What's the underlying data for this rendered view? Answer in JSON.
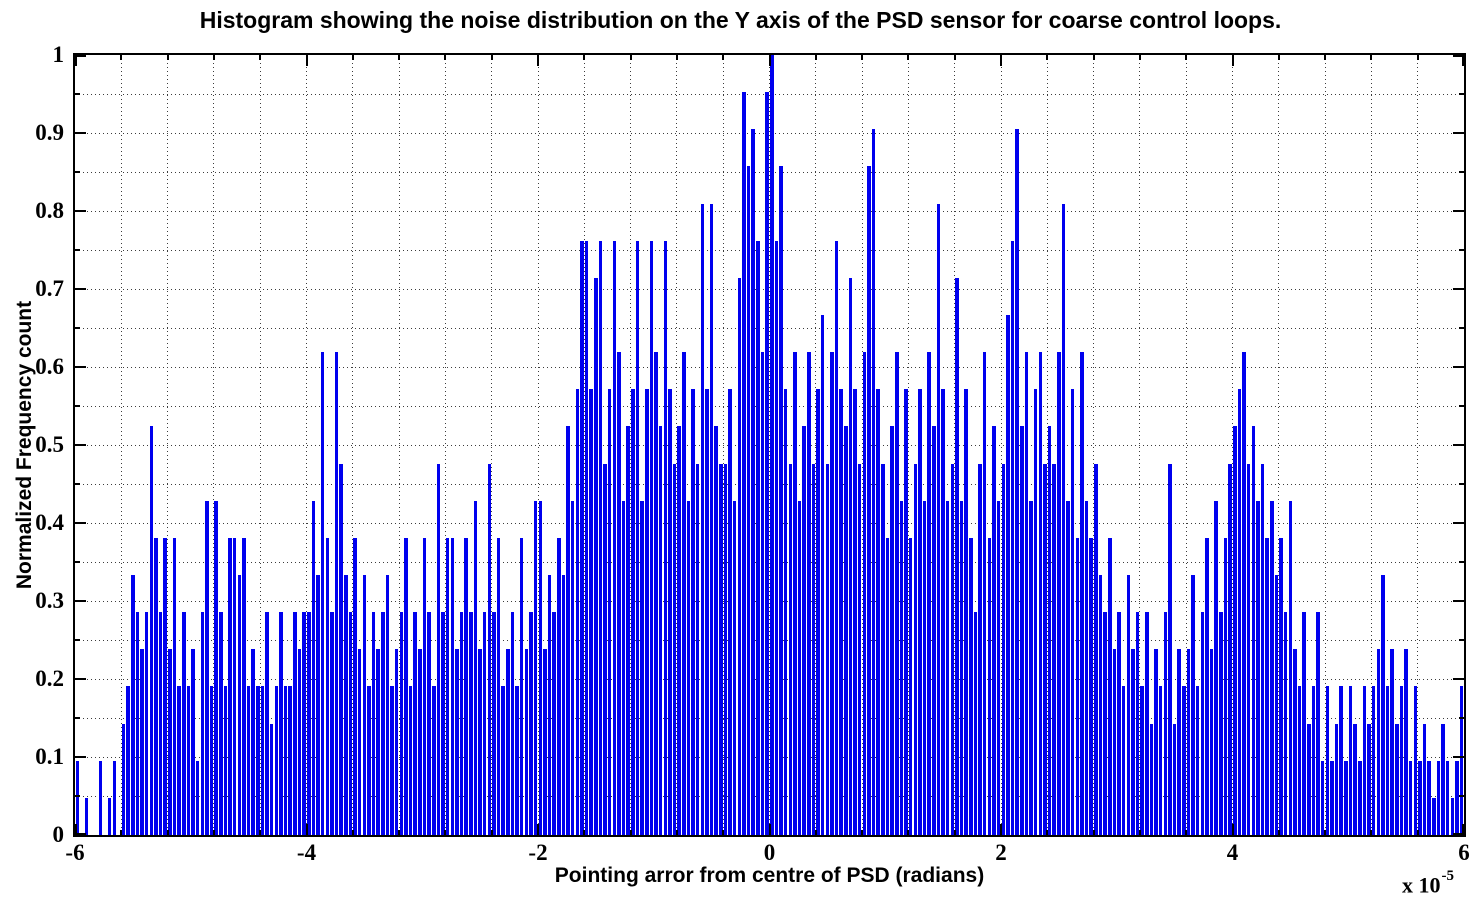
{
  "chart_data": {
    "type": "bar",
    "title": "Histogram showing the noise distribution on the Y axis of the PSD sensor for coarse control loops.",
    "xlabel": "Pointing arror from centre of PSD (radians)",
    "ylabel": "Normalized Frequency count",
    "exponent_prefix": "x 10",
    "exponent_power": "-5",
    "bar_color": "#0000ee",
    "grid": {
      "style": "dotted",
      "x_spacing": 0.4,
      "y_spacing": 0.05
    },
    "legend": "none",
    "x_axis": {
      "min": -6,
      "max": 6,
      "major_ticks": [
        -6,
        -4,
        -2,
        0,
        2,
        4,
        6
      ],
      "tick_labels": [
        "-6",
        "-4",
        "-2",
        "0",
        "2",
        "4",
        "6"
      ],
      "minor_step": 0.4
    },
    "y_axis": {
      "min": 0,
      "max": 1,
      "major_ticks": [
        0,
        0.1,
        0.2,
        0.3,
        0.4,
        0.5,
        0.6,
        0.7,
        0.8,
        0.9,
        1
      ],
      "tick_labels": [
        "0",
        "0.1",
        "0.2",
        "0.3",
        "0.4",
        "0.5",
        "0.6",
        "0.7",
        "0.8",
        "0.9",
        "1"
      ],
      "minor_step": 0.05
    },
    "bins": {
      "start": -6,
      "end": 6,
      "count": 300
    },
    "max_count": 21,
    "counts": [
      2,
      0,
      1,
      0,
      0,
      2,
      0,
      1,
      2,
      0,
      3,
      4,
      7,
      6,
      5,
      6,
      11,
      8,
      6,
      8,
      5,
      8,
      4,
      6,
      4,
      5,
      2,
      6,
      9,
      4,
      9,
      6,
      4,
      8,
      8,
      7,
      8,
      4,
      5,
      4,
      4,
      6,
      3,
      4,
      6,
      4,
      4,
      6,
      5,
      6,
      6,
      9,
      7,
      13,
      8,
      6,
      13,
      10,
      7,
      6,
      8,
      5,
      7,
      4,
      6,
      5,
      6,
      7,
      4,
      5,
      6,
      8,
      4,
      6,
      5,
      8,
      6,
      4,
      10,
      6,
      8,
      8,
      5,
      6,
      8,
      6,
      9,
      5,
      6,
      10,
      6,
      8,
      4,
      5,
      6,
      4,
      8,
      5,
      6,
      9,
      9,
      5,
      7,
      6,
      8,
      7,
      11,
      9,
      12,
      16,
      16,
      12,
      15,
      16,
      10,
      12,
      16,
      13,
      9,
      11,
      12,
      16,
      9,
      12,
      16,
      13,
      11,
      16,
      12,
      10,
      11,
      13,
      9,
      12,
      10,
      17,
      12,
      17,
      11,
      10,
      10,
      12,
      9,
      15,
      20,
      18,
      19,
      16,
      13,
      20,
      21,
      16,
      18,
      12,
      10,
      13,
      9,
      11,
      13,
      10,
      12,
      14,
      10,
      13,
      16,
      12,
      11,
      15,
      12,
      10,
      13,
      18,
      19,
      12,
      10,
      8,
      11,
      13,
      9,
      12,
      8,
      10,
      12,
      9,
      13,
      11,
      17,
      12,
      9,
      10,
      15,
      9,
      12,
      8,
      6,
      10,
      13,
      8,
      11,
      9,
      10,
      14,
      16,
      19,
      11,
      13,
      9,
      12,
      13,
      10,
      11,
      10,
      13,
      17,
      9,
      12,
      8,
      13,
      9,
      8,
      10,
      7,
      6,
      8,
      5,
      6,
      4,
      7,
      5,
      6,
      4,
      6,
      3,
      5,
      4,
      6,
      10,
      3,
      5,
      4,
      5,
      7,
      4,
      6,
      8,
      5,
      9,
      6,
      8,
      10,
      11,
      12,
      13,
      10,
      11,
      9,
      10,
      8,
      9,
      7,
      8,
      6,
      9,
      5,
      4,
      6,
      3,
      4,
      6,
      2,
      4,
      2,
      3,
      4,
      2,
      4,
      3,
      2,
      4,
      3,
      4,
      5,
      7,
      4,
      5,
      3,
      4,
      5,
      2,
      4,
      2,
      3,
      2,
      1,
      2,
      3,
      2,
      1,
      2,
      4
    ]
  }
}
